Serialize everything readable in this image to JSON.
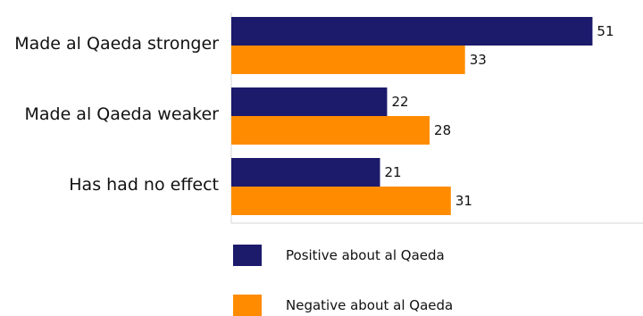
{
  "chart_data": {
    "type": "bar",
    "orientation": "horizontal",
    "categories": [
      "Made al Qaeda stronger",
      "Made al Qaeda weaker",
      "Has had no effect"
    ],
    "series": [
      {
        "name": "Positive about al Qaeda",
        "values": [
          51,
          22,
          21
        ],
        "color": "#1b1a6b"
      },
      {
        "name": "Negative about al Qaeda",
        "values": [
          33,
          28,
          31
        ],
        "color": "#ff8c00"
      }
    ],
    "title": "",
    "xlabel": "",
    "ylabel": "",
    "xlim": [
      0,
      60
    ],
    "grid": false,
    "legend": "bottom"
  }
}
